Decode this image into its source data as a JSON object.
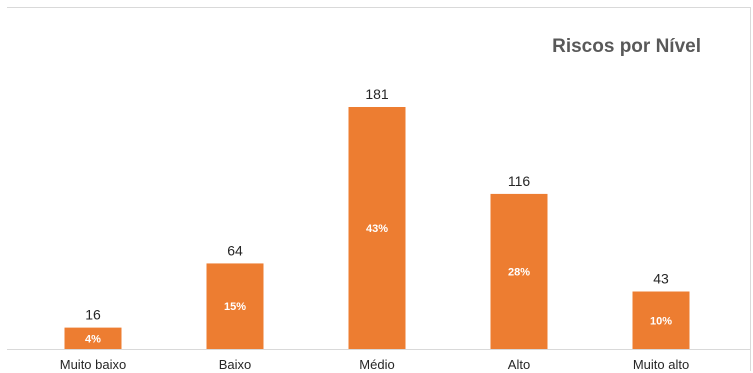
{
  "chart_data": {
    "type": "bar",
    "title": "Riscos por Nível",
    "categories": [
      "Muito baixo",
      "Baixo",
      "Médio",
      "Alto",
      "Muito alto"
    ],
    "values": [
      16,
      64,
      181,
      116,
      43
    ],
    "percent_labels": [
      "4%",
      "15%",
      "43%",
      "28%",
      "10%"
    ],
    "xlabel": "",
    "ylabel": "",
    "ylim": [
      0,
      181
    ],
    "grid": false,
    "legend": "none",
    "colors": {
      "bar": "#ed7d31",
      "value_label": "#262626",
      "percent_label": "#ffffff",
      "category_label": "#262626",
      "axis": "#d9d9d9",
      "title": "#595959"
    }
  }
}
